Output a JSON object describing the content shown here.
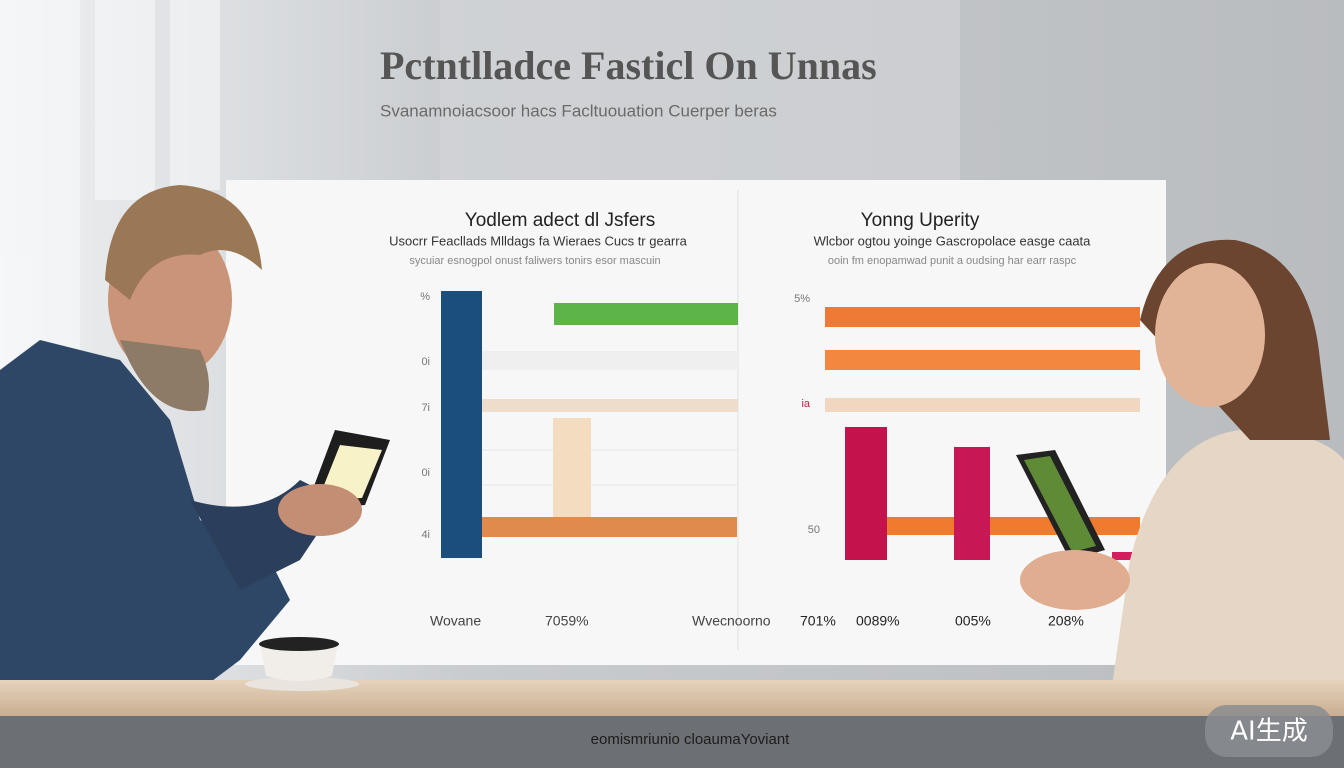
{
  "header": {
    "title": "Pctntlladce Fasticl On Unnas",
    "subtitle": "Svanamnoiacsoor hacs Facltuouation Cuerper beras"
  },
  "panels": [
    {
      "title": "Yodlem adect dl Jsfers",
      "subtitle": "Usocrr Feacllads Mlldags fa Wieraes Cucs tr gearra",
      "note": "sycuiar esnogpol onust faliwers tonirs esor mascuin",
      "axis_labels": [
        "%",
        "0i",
        "7i",
        "0i",
        "4i"
      ],
      "bottom_labels": [
        "Wovane",
        "7059%"
      ]
    },
    {
      "title": "Yonng Uperity",
      "subtitle": "Wlcbor ogtou yoinge Gascropolace easge caata",
      "note": "ooin fm enopamwad punit a oudsing har earr raspc",
      "axis_labels": [
        "5%",
        "ia",
        "50"
      ],
      "bottom_labels": [
        "Wvecnoorno",
        "701%",
        "0089%",
        "005%",
        "208%"
      ]
    }
  ],
  "footer": "eomismriunio cloaumaYoviant",
  "watermark": "AI生成"
}
